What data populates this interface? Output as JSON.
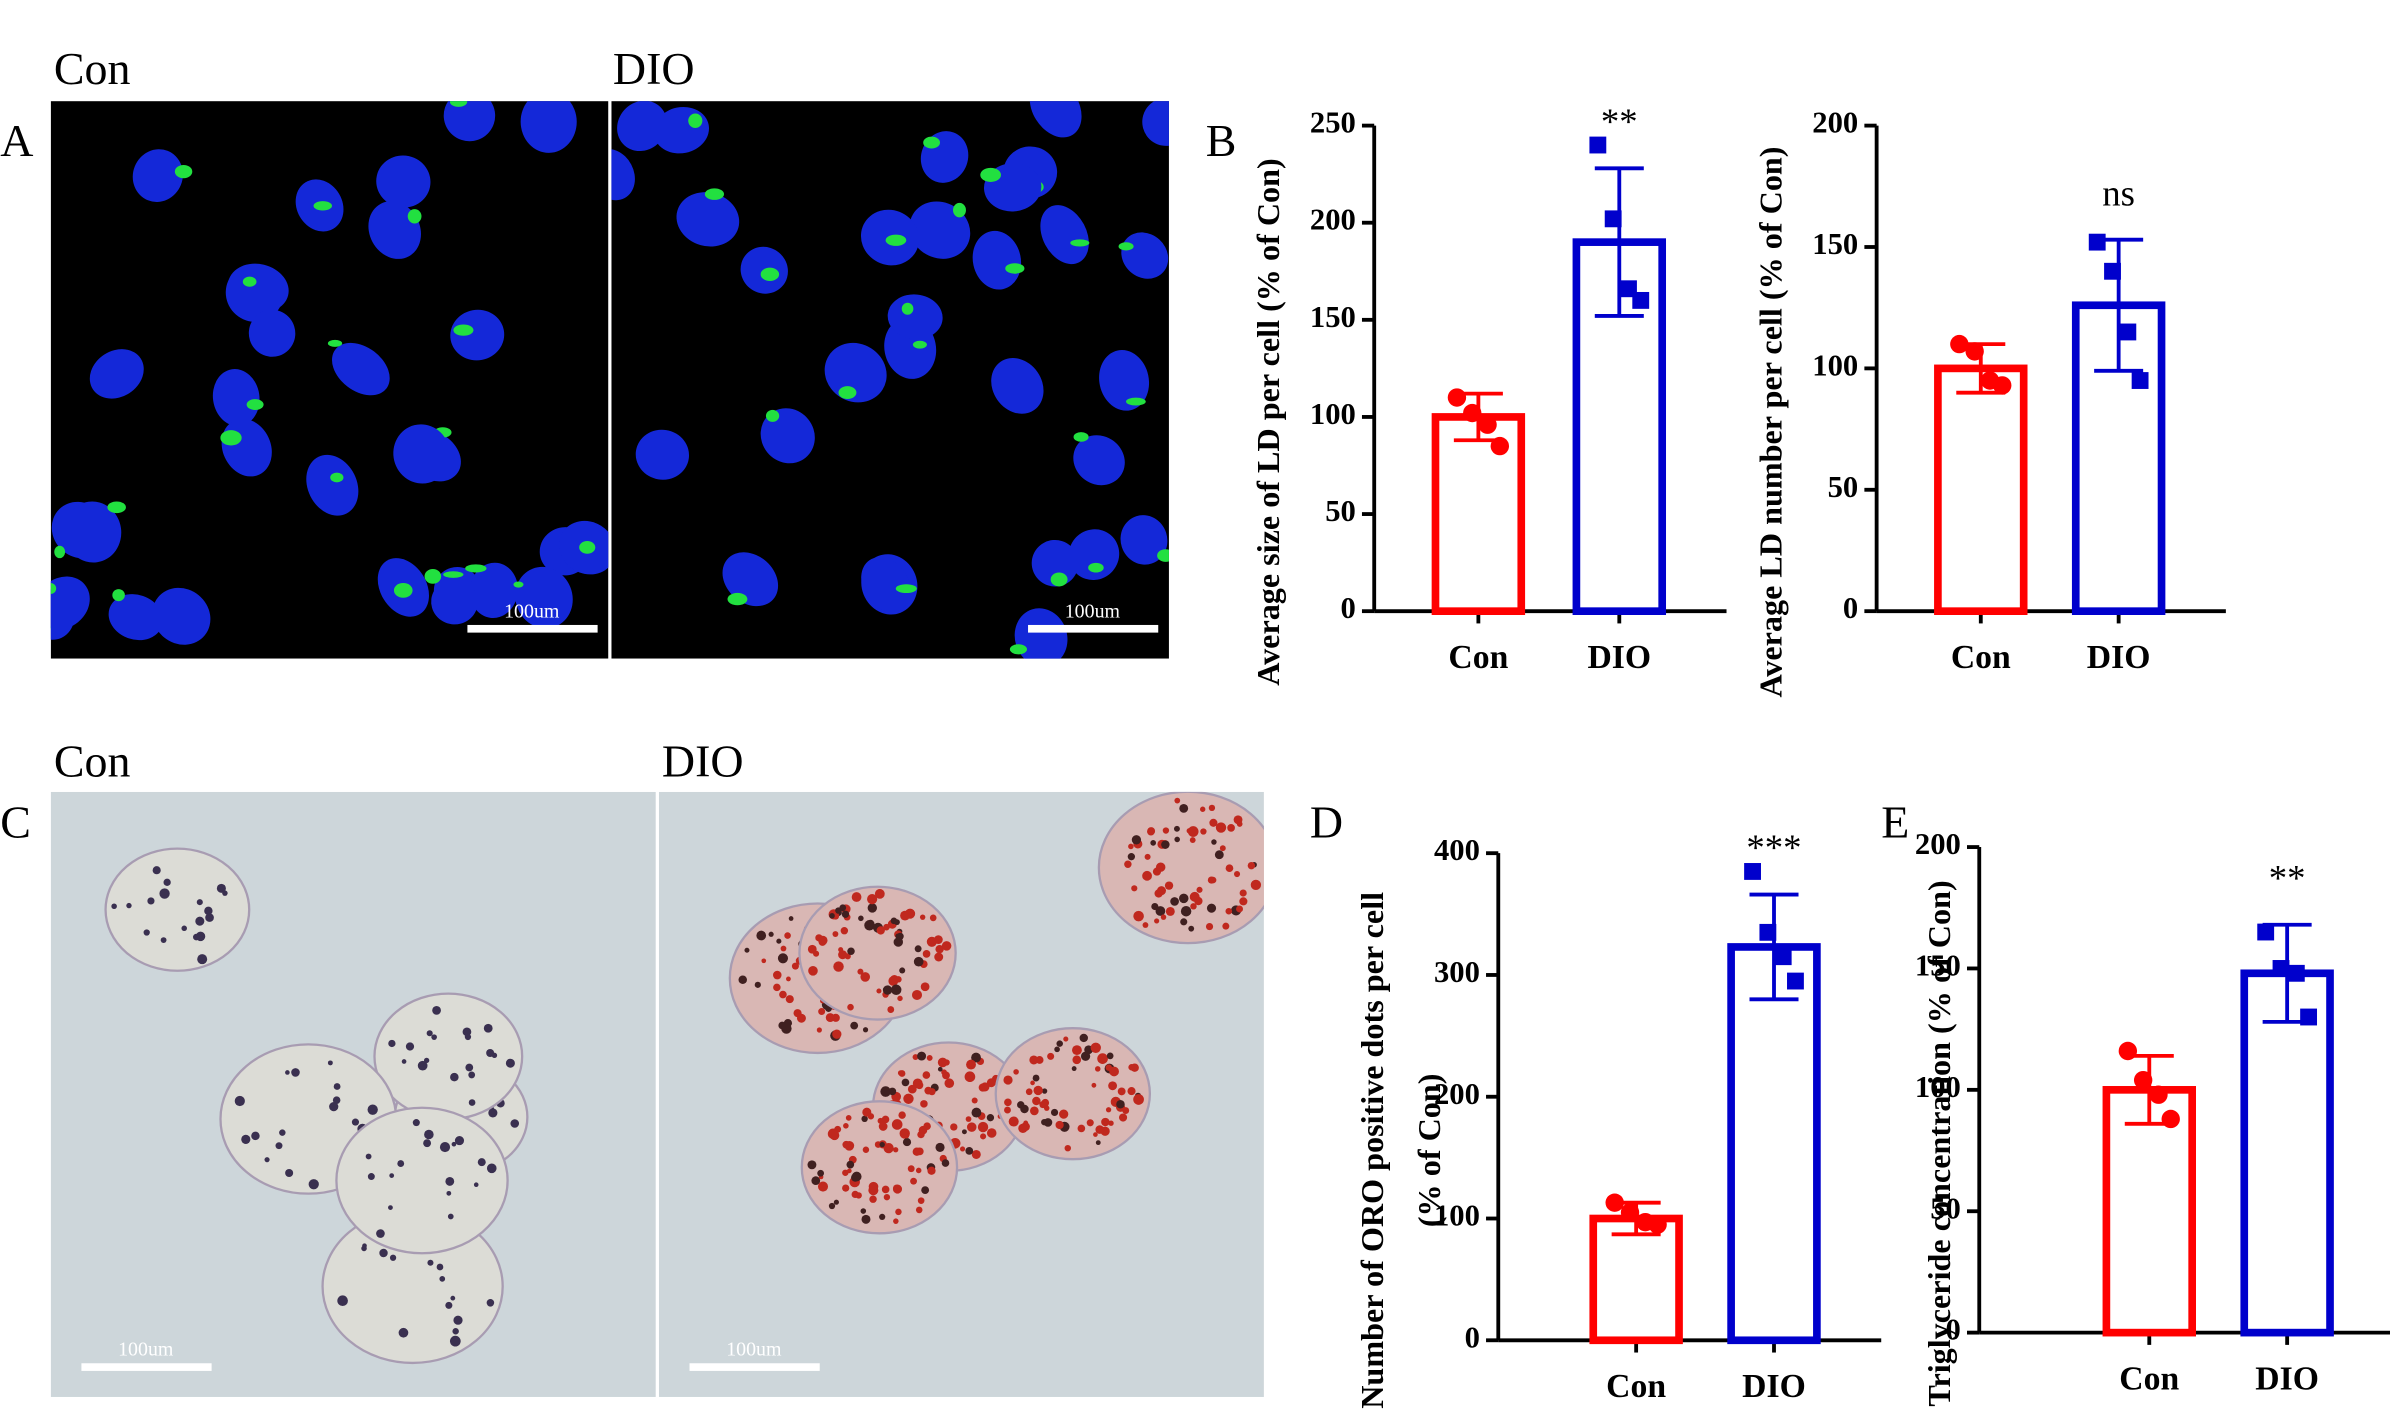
{
  "panel_labels": [
    "A",
    "B",
    "C",
    "D",
    "E"
  ],
  "images": [
    {
      "label": "Con",
      "scale_bar": "100um"
    },
    {
      "label": "DIO",
      "scale_bar": "100um"
    },
    {
      "label": "Con",
      "scale_bar": "100um"
    },
    {
      "label": "DIO",
      "scale_bar": "100um"
    }
  ],
  "chart_data": [
    {
      "type": "bar",
      "ylabel": [
        "Average size of LD per cell (% of Con)"
      ],
      "categories": [
        "Con",
        "DIO"
      ],
      "values": [
        100,
        190
      ],
      "errors": [
        12,
        38
      ],
      "points": [
        [
          110,
          102,
          96,
          85
        ],
        [
          240,
          202,
          166,
          160
        ]
      ],
      "colors": [
        "#ff0000",
        "#0000cc"
      ],
      "annotation": "**",
      "ylim": [
        0,
        250
      ],
      "yticks": [
        0,
        50,
        100,
        150,
        200,
        250
      ]
    },
    {
      "type": "bar",
      "ylabel": [
        "Average LD number per cell (% of Con)"
      ],
      "categories": [
        "Con",
        "DIO"
      ],
      "values": [
        100,
        126
      ],
      "errors": [
        10,
        27
      ],
      "points": [
        [
          110,
          107,
          95,
          93
        ],
        [
          152,
          140,
          115,
          95
        ]
      ],
      "colors": [
        "#ff0000",
        "#0000cc"
      ],
      "annotation": "ns",
      "ylim": [
        0,
        200
      ],
      "yticks": [
        0,
        50,
        100,
        150,
        200
      ]
    },
    {
      "type": "bar",
      "ylabel": [
        "Number of ORO positive dots per cell",
        "(% of Con)"
      ],
      "categories": [
        "Con",
        "DIO"
      ],
      "values": [
        100,
        323
      ],
      "errors": [
        13,
        43
      ],
      "points": [
        [
          113,
          105,
          97,
          95
        ],
        [
          385,
          335,
          315,
          295
        ]
      ],
      "colors": [
        "#ff0000",
        "#0000cc"
      ],
      "annotation": "***",
      "ylim": [
        0,
        400
      ],
      "yticks": [
        0,
        100,
        200,
        300,
        400
      ]
    },
    {
      "type": "bar",
      "ylabel": [
        "Triglyceride concentration (% of Con)"
      ],
      "categories": [
        "Con",
        "DIO"
      ],
      "values": [
        100,
        148
      ],
      "errors": [
        14,
        20
      ],
      "points": [
        [
          116,
          104,
          98,
          88
        ],
        [
          165,
          150,
          148,
          130
        ]
      ],
      "colors": [
        "#ff0000",
        "#0000cc"
      ],
      "annotation": "**",
      "ylim": [
        0,
        200
      ],
      "yticks": [
        0,
        50,
        100,
        150,
        200
      ]
    }
  ]
}
